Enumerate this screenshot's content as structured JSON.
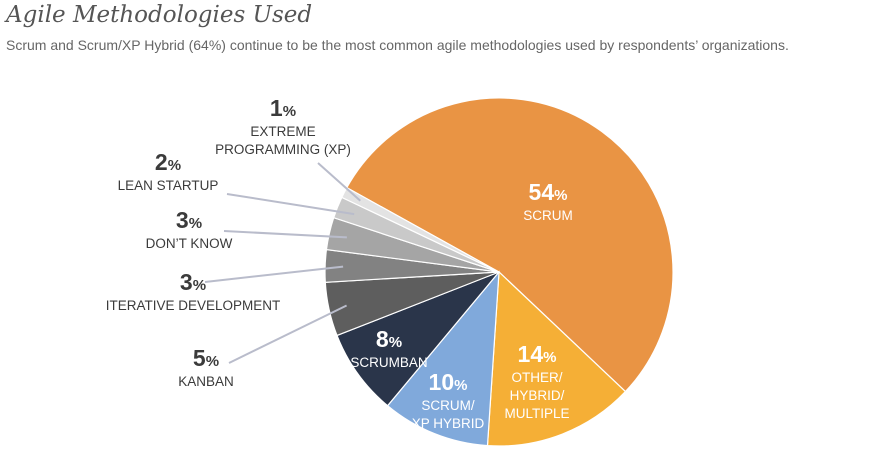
{
  "header": {
    "title": "Agile Methodologies Used",
    "subtitle": "Scrum and Scrum/XP Hybrid (64%) continue to be the most common agile methodologies used by respondents’ organizations."
  },
  "chart_data": {
    "type": "pie",
    "title": "Agile Methodologies Used",
    "slices": [
      {
        "label": "SCRUM",
        "value": 54,
        "label_lines": [
          "SCRUM"
        ],
        "color": "#E99444"
      },
      {
        "label": "OTHER/ HYBRID/ MULTIPLE",
        "value": 14,
        "label_lines": [
          "OTHER/",
          "HYBRID/",
          "MULTIPLE"
        ],
        "color": "#F5AF36"
      },
      {
        "label": "SCRUM/ XP HYBRID",
        "value": 10,
        "label_lines": [
          "SCRUM/",
          "XP HYBRID"
        ],
        "color": "#80A9DB"
      },
      {
        "label": "SCRUMBAN",
        "value": 8,
        "label_lines": [
          "SCRUMBAN"
        ],
        "color": "#2A354A"
      },
      {
        "label": "KANBAN",
        "value": 5,
        "label_lines": [
          "KANBAN"
        ],
        "color": "#5E5E5E"
      },
      {
        "label": "ITERATIVE DEVELOPMENT",
        "value": 3,
        "label_lines": [
          "ITERATIVE DEVELOPMENT"
        ],
        "color": "#828282"
      },
      {
        "label": "DON’T KNOW",
        "value": 3,
        "label_lines": [
          "DON’T KNOW"
        ],
        "color": "#A5A5A5"
      },
      {
        "label": "LEAN STARTUP",
        "value": 2,
        "label_lines": [
          "LEAN STARTUP"
        ],
        "color": "#C9C9C9"
      },
      {
        "label": "EXTREME PROGRAMMING (XP)",
        "value": 1,
        "label_lines": [
          "EXTREME",
          "PROGRAMMING (XP)"
        ],
        "color": "#E3E3E3"
      }
    ],
    "value_suffix": "%",
    "leader_color": "#B9BCCB"
  }
}
